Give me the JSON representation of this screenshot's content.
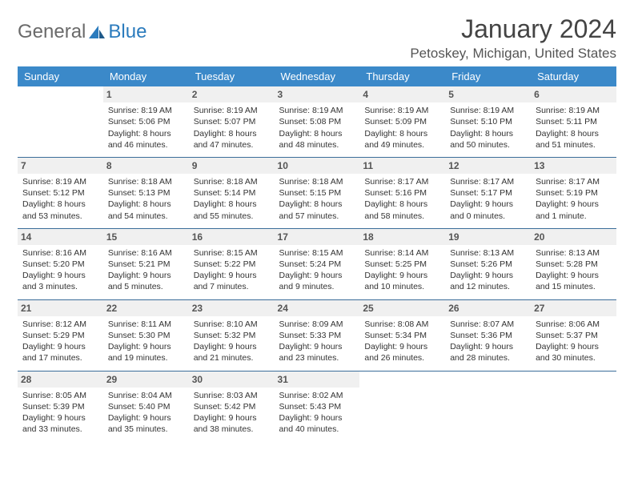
{
  "logo": {
    "general": "General",
    "blue": "Blue"
  },
  "title": "January 2024",
  "location": "Petoskey, Michigan, United States",
  "colors": {
    "header_bg": "#3b89c9",
    "header_text": "#ffffff",
    "daynum_bg": "#f0f0f0",
    "border": "#3b6d9a",
    "logo_gray": "#6a6a6a",
    "logo_blue": "#2b7bbd"
  },
  "day_headers": [
    "Sunday",
    "Monday",
    "Tuesday",
    "Wednesday",
    "Thursday",
    "Friday",
    "Saturday"
  ],
  "weeks": [
    [
      null,
      {
        "n": "1",
        "sr": "8:19 AM",
        "ss": "5:06 PM",
        "dl": "8 hours and 46 minutes."
      },
      {
        "n": "2",
        "sr": "8:19 AM",
        "ss": "5:07 PM",
        "dl": "8 hours and 47 minutes."
      },
      {
        "n": "3",
        "sr": "8:19 AM",
        "ss": "5:08 PM",
        "dl": "8 hours and 48 minutes."
      },
      {
        "n": "4",
        "sr": "8:19 AM",
        "ss": "5:09 PM",
        "dl": "8 hours and 49 minutes."
      },
      {
        "n": "5",
        "sr": "8:19 AM",
        "ss": "5:10 PM",
        "dl": "8 hours and 50 minutes."
      },
      {
        "n": "6",
        "sr": "8:19 AM",
        "ss": "5:11 PM",
        "dl": "8 hours and 51 minutes."
      }
    ],
    [
      {
        "n": "7",
        "sr": "8:19 AM",
        "ss": "5:12 PM",
        "dl": "8 hours and 53 minutes."
      },
      {
        "n": "8",
        "sr": "8:18 AM",
        "ss": "5:13 PM",
        "dl": "8 hours and 54 minutes."
      },
      {
        "n": "9",
        "sr": "8:18 AM",
        "ss": "5:14 PM",
        "dl": "8 hours and 55 minutes."
      },
      {
        "n": "10",
        "sr": "8:18 AM",
        "ss": "5:15 PM",
        "dl": "8 hours and 57 minutes."
      },
      {
        "n": "11",
        "sr": "8:17 AM",
        "ss": "5:16 PM",
        "dl": "8 hours and 58 minutes."
      },
      {
        "n": "12",
        "sr": "8:17 AM",
        "ss": "5:17 PM",
        "dl": "9 hours and 0 minutes."
      },
      {
        "n": "13",
        "sr": "8:17 AM",
        "ss": "5:19 PM",
        "dl": "9 hours and 1 minute."
      }
    ],
    [
      {
        "n": "14",
        "sr": "8:16 AM",
        "ss": "5:20 PM",
        "dl": "9 hours and 3 minutes."
      },
      {
        "n": "15",
        "sr": "8:16 AM",
        "ss": "5:21 PM",
        "dl": "9 hours and 5 minutes."
      },
      {
        "n": "16",
        "sr": "8:15 AM",
        "ss": "5:22 PM",
        "dl": "9 hours and 7 minutes."
      },
      {
        "n": "17",
        "sr": "8:15 AM",
        "ss": "5:24 PM",
        "dl": "9 hours and 9 minutes."
      },
      {
        "n": "18",
        "sr": "8:14 AM",
        "ss": "5:25 PM",
        "dl": "9 hours and 10 minutes."
      },
      {
        "n": "19",
        "sr": "8:13 AM",
        "ss": "5:26 PM",
        "dl": "9 hours and 12 minutes."
      },
      {
        "n": "20",
        "sr": "8:13 AM",
        "ss": "5:28 PM",
        "dl": "9 hours and 15 minutes."
      }
    ],
    [
      {
        "n": "21",
        "sr": "8:12 AM",
        "ss": "5:29 PM",
        "dl": "9 hours and 17 minutes."
      },
      {
        "n": "22",
        "sr": "8:11 AM",
        "ss": "5:30 PM",
        "dl": "9 hours and 19 minutes."
      },
      {
        "n": "23",
        "sr": "8:10 AM",
        "ss": "5:32 PM",
        "dl": "9 hours and 21 minutes."
      },
      {
        "n": "24",
        "sr": "8:09 AM",
        "ss": "5:33 PM",
        "dl": "9 hours and 23 minutes."
      },
      {
        "n": "25",
        "sr": "8:08 AM",
        "ss": "5:34 PM",
        "dl": "9 hours and 26 minutes."
      },
      {
        "n": "26",
        "sr": "8:07 AM",
        "ss": "5:36 PM",
        "dl": "9 hours and 28 minutes."
      },
      {
        "n": "27",
        "sr": "8:06 AM",
        "ss": "5:37 PM",
        "dl": "9 hours and 30 minutes."
      }
    ],
    [
      {
        "n": "28",
        "sr": "8:05 AM",
        "ss": "5:39 PM",
        "dl": "9 hours and 33 minutes."
      },
      {
        "n": "29",
        "sr": "8:04 AM",
        "ss": "5:40 PM",
        "dl": "9 hours and 35 minutes."
      },
      {
        "n": "30",
        "sr": "8:03 AM",
        "ss": "5:42 PM",
        "dl": "9 hours and 38 minutes."
      },
      {
        "n": "31",
        "sr": "8:02 AM",
        "ss": "5:43 PM",
        "dl": "9 hours and 40 minutes."
      },
      null,
      null,
      null
    ]
  ],
  "labels": {
    "sunrise": "Sunrise: ",
    "sunset": "Sunset: ",
    "daylight": "Daylight: "
  }
}
